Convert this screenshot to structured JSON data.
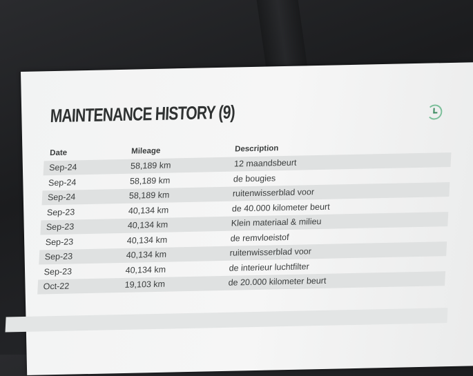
{
  "title": "MAINTENANCE HISTORY (9)",
  "icon": "history-icon",
  "accent_color": "#3b8a5f",
  "columns": [
    "Date",
    "Mileage",
    "Description"
  ],
  "rows": [
    {
      "date": "Sep-24",
      "mileage": "58,189 km",
      "description": "12 maandsbeurt"
    },
    {
      "date": "Sep-24",
      "mileage": "58,189 km",
      "description": "de bougies"
    },
    {
      "date": "Sep-24",
      "mileage": "58,189 km",
      "description": "ruitenwisserblad voor"
    },
    {
      "date": "Sep-23",
      "mileage": "40,134 km",
      "description": "de 40.000 kilometer beurt"
    },
    {
      "date": "Sep-23",
      "mileage": "40,134 km",
      "description": "Klein materiaal & milieu"
    },
    {
      "date": "Sep-23",
      "mileage": "40,134 km",
      "description": "de remvloeistof"
    },
    {
      "date": "Sep-23",
      "mileage": "40,134 km",
      "description": "ruitenwisserblad voor"
    },
    {
      "date": "Sep-23",
      "mileage": "40,134 km",
      "description": "de interieur luchtfilter"
    },
    {
      "date": "Oct-22",
      "mileage": "19,103 km",
      "description": "de 20.000 kilometer beurt"
    }
  ]
}
